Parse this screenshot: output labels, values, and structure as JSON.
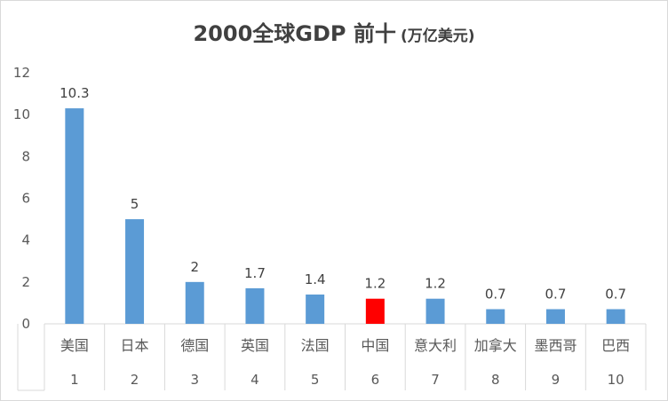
{
  "chart_data": {
    "type": "bar",
    "title": "2000全球GDP 前十",
    "title_unit": "(万亿美元)",
    "categories": [
      "美国",
      "日本",
      "德国",
      "英国",
      "法国",
      "中国",
      "意大利",
      "加拿大",
      "墨西哥",
      "巴西"
    ],
    "ranks": [
      "1",
      "2",
      "3",
      "4",
      "5",
      "6",
      "7",
      "8",
      "9",
      "10"
    ],
    "series": [
      {
        "values": [
          10.3,
          5,
          2,
          1.7,
          1.4,
          1.2,
          1.2,
          0.7,
          0.7,
          0.7
        ],
        "data_labels": [
          "10.3",
          "5",
          "2",
          "1.7",
          "1.4",
          "1.2",
          "1.2",
          "0.7",
          "0.7",
          "0.7"
        ]
      }
    ],
    "ylim": [
      0,
      12
    ],
    "yticks": [
      0,
      2,
      4,
      6,
      8,
      10,
      12
    ],
    "grid": false,
    "legend": "none",
    "colors": {
      "bar": "#5b9bd5",
      "highlight": "#ff0000",
      "highlight_index": 5,
      "axis": "#d9d9d9",
      "text": "#595959"
    }
  }
}
